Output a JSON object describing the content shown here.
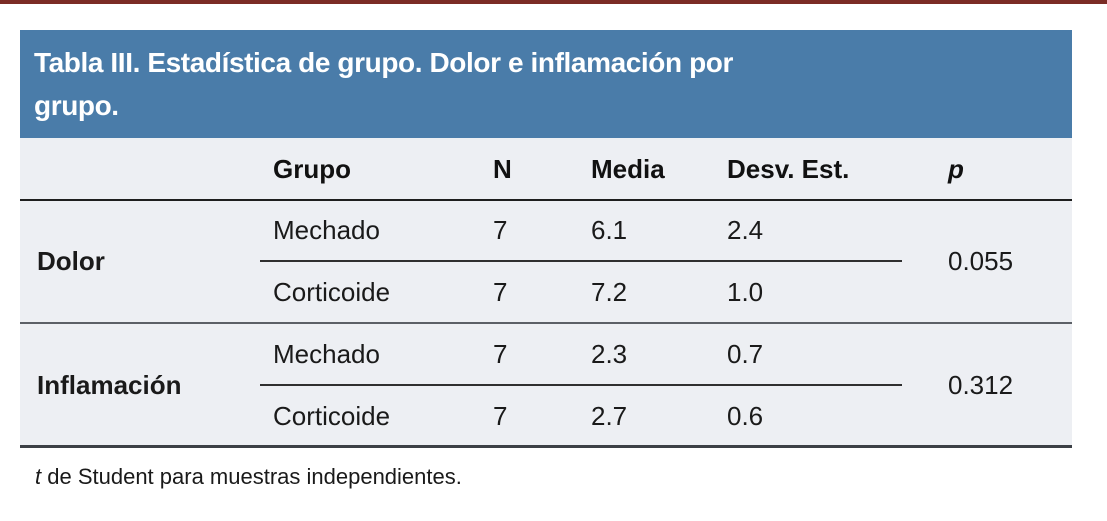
{
  "colors": {
    "top_rule": "#7b2c25",
    "caption_band": "#4a7ca9",
    "caption_text": "#ffffff",
    "table_body_bg": "#edeff3",
    "text": "#1a1a1a",
    "rule_dark": "#1e1e1e",
    "rule_gray": "#5c6066"
  },
  "caption": {
    "full": "Tabla III. Estadística de grupo. Dolor e inflamación por grupo.",
    "line1": "Tabla III. Estadística de grupo. Dolor e inflamación por",
    "line2": "grupo."
  },
  "columns": [
    "",
    "Grupo",
    "N",
    "Media",
    "Desv. Est.",
    "p"
  ],
  "groups": [
    {
      "label": "Dolor",
      "p": "0.055",
      "rows": [
        {
          "grupo": "Mechado",
          "n": "7",
          "media": "6.1",
          "desv": "2.4"
        },
        {
          "grupo": "Corticoide",
          "n": "7",
          "media": "7.2",
          "desv": "1.0"
        }
      ]
    },
    {
      "label": "Inflamación",
      "p": "0.312",
      "rows": [
        {
          "grupo": "Mechado",
          "n": "7",
          "media": "2.3",
          "desv": "0.7"
        },
        {
          "grupo": "Corticoide",
          "n": "7",
          "media": "2.7",
          "desv": "0.6"
        }
      ]
    }
  ],
  "footnote": {
    "symbol": "t",
    "text": " de Student para muestras independientes."
  }
}
